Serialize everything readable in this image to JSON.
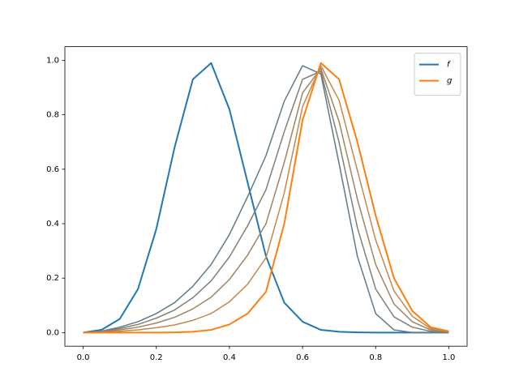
{
  "chart_data": {
    "type": "line",
    "legend": "upper right",
    "x": [
      0,
      0.05,
      0.1,
      0.15,
      0.2,
      0.25,
      0.3,
      0.35,
      0.4,
      0.45,
      0.5,
      0.55,
      0.6,
      0.65,
      0.7,
      0.75,
      0.8,
      0.85,
      0.9,
      0.95,
      1.0
    ],
    "series": [
      {
        "name": "f",
        "color": "#1f77b4",
        "width": 2,
        "values": [
          0,
          0.01,
          0.05,
          0.16,
          0.38,
          0.68,
          0.93,
          0.99,
          0.82,
          0.55,
          0.28,
          0.11,
          0.04,
          0.01,
          0.003,
          0.001,
          0,
          0,
          0,
          0,
          0
        ]
      },
      {
        "color": "#5f7a88",
        "width": 1.5,
        "values": [
          0,
          0.005,
          0.02,
          0.04,
          0.07,
          0.11,
          0.17,
          0.25,
          0.36,
          0.5,
          0.65,
          0.85,
          0.98,
          0.95,
          0.62,
          0.28,
          0.07,
          0.01,
          0,
          0,
          0
        ]
      },
      {
        "color": "#7f7f74",
        "width": 1.5,
        "values": [
          0,
          0.004,
          0.015,
          0.03,
          0.053,
          0.083,
          0.128,
          0.19,
          0.278,
          0.393,
          0.525,
          0.738,
          0.93,
          0.96,
          0.698,
          0.385,
          0.16,
          0.058,
          0.02,
          0.005,
          0.001
        ]
      },
      {
        "color": "#a08460",
        "width": 1.5,
        "values": [
          0,
          0.003,
          0.01,
          0.02,
          0.035,
          0.056,
          0.087,
          0.13,
          0.195,
          0.285,
          0.4,
          0.625,
          0.88,
          0.97,
          0.775,
          0.49,
          0.25,
          0.105,
          0.04,
          0.01,
          0.003
        ]
      },
      {
        "color": "#c4874c",
        "width": 1.5,
        "values": [
          0,
          0.001,
          0.005,
          0.01,
          0.018,
          0.028,
          0.045,
          0.07,
          0.113,
          0.178,
          0.275,
          0.513,
          0.83,
          0.98,
          0.853,
          0.595,
          0.34,
          0.153,
          0.06,
          0.015,
          0.004
        ]
      },
      {
        "name": "g",
        "color": "#ff7f0e",
        "width": 2,
        "values": [
          0,
          0,
          0,
          0,
          0,
          0.001,
          0.003,
          0.01,
          0.03,
          0.07,
          0.15,
          0.4,
          0.78,
          0.99,
          0.93,
          0.7,
          0.43,
          0.2,
          0.08,
          0.02,
          0.005
        ]
      }
    ],
    "xlim": [
      -0.05,
      1.05
    ],
    "ylim": [
      -0.05,
      1.05
    ],
    "xticks": [
      {
        "value": 0,
        "label": "0.0"
      },
      0.2,
      0.4,
      0.6,
      0.8,
      {
        "value": 1,
        "label": "1.0"
      }
    ],
    "yticks": [
      {
        "value": 0,
        "label": "0.0"
      },
      0.2,
      0.4,
      0.6,
      0.8,
      {
        "value": 1,
        "label": "1.0"
      }
    ]
  }
}
